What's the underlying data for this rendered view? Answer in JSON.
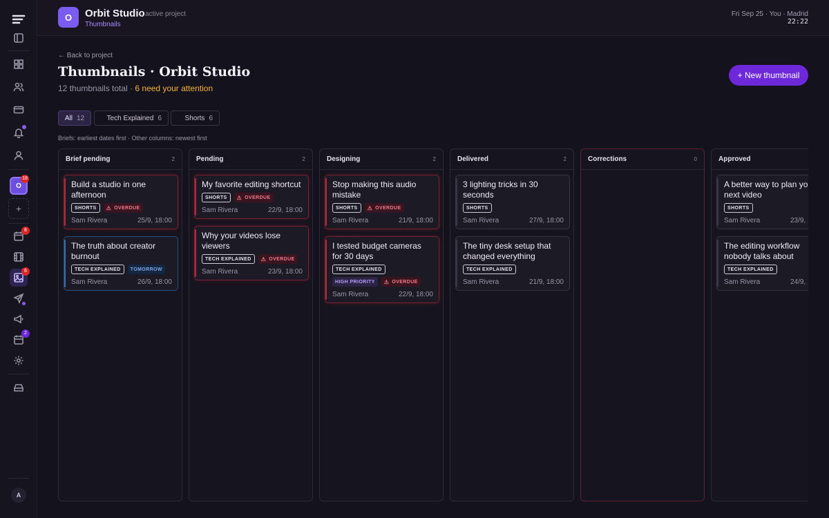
{
  "topbar": {
    "project_initial": "O",
    "project_name": "Orbit Studio",
    "project_status": "· active project",
    "breadcrumb": "Thumbnails",
    "datetime": "Fri Sep 25 · You · Madrid",
    "time": "22:22"
  },
  "sidebar": {
    "project_initial": "O",
    "project_badge": "18",
    "calendar_badge": "8",
    "thumbnails_badge": "6",
    "inbox_badge": "2",
    "avatar": "A"
  },
  "header": {
    "back": "← Back to project",
    "title": "Thumbnails · Orbit Studio",
    "total": "12 thumbnails total · ",
    "attention": "6 need your attention",
    "new_button": "+ New thumbnail"
  },
  "filters": [
    {
      "label": "All",
      "count": "12"
    },
    {
      "label": "Tech Explained",
      "count": "6"
    },
    {
      "label": "Shorts",
      "count": "6"
    }
  ],
  "sort_note": "Briefs: earliest dates first · Other columns: newest first",
  "columns": [
    {
      "name": "Brief pending",
      "count": "2",
      "cards": [
        {
          "title": "Build a studio in one afternoon",
          "tag": "SHORTS",
          "flag": "OVERDUE",
          "owner": "Sam Rivera",
          "date": "25/9, 18:00"
        },
        {
          "title": "The truth about creator burnout",
          "tag": "TECH EXPLAINED",
          "flag": "TOMORROW",
          "owner": "Sam Rivera",
          "date": "26/9, 18:00"
        }
      ]
    },
    {
      "name": "Pending",
      "count": "2",
      "cards": [
        {
          "title": "My favorite editing shortcut",
          "tag": "SHORTS",
          "flag": "OVERDUE",
          "owner": "Sam Rivera",
          "date": "22/9, 18:00"
        },
        {
          "title": "Why your videos lose viewers",
          "tag": "TECH EXPLAINED",
          "flag": "OVERDUE",
          "owner": "Sam Rivera",
          "date": "23/9, 18:00"
        }
      ]
    },
    {
      "name": "Designing",
      "count": "2",
      "cards": [
        {
          "title": "Stop making this audio mistake",
          "tag": "SHORTS",
          "flag": "OVERDUE",
          "owner": "Sam Rivera",
          "date": "21/9, 18:00"
        },
        {
          "title": "I tested budget cameras for 30 days",
          "tag": "TECH EXPLAINED",
          "priority": "HIGH PRIORITY",
          "flag": "OVERDUE",
          "owner": "Sam Rivera",
          "date": "22/9, 18:00"
        }
      ]
    },
    {
      "name": "Delivered",
      "count": "2",
      "cards": [
        {
          "title": "3 lighting tricks in 30 seconds",
          "tag": "SHORTS",
          "owner": "Sam Rivera",
          "date": "27/9, 18:00"
        },
        {
          "title": "The tiny desk setup that changed everything",
          "tag": "TECH EXPLAINED",
          "owner": "Sam Rivera",
          "date": "21/9, 18:00"
        }
      ]
    },
    {
      "name": "Corrections",
      "count": "0",
      "cards": []
    },
    {
      "name": "Approved",
      "count": "2",
      "cards": [
        {
          "title": "A better way to plan your next video",
          "tag": "SHORTS",
          "owner": "Sam Rivera",
          "date": "23/9, 18:00"
        },
        {
          "title": "The editing workflow nobody talks about",
          "tag": "TECH EXPLAINED",
          "owner": "Sam Rivera",
          "date": "24/9, 18:00"
        }
      ]
    }
  ]
}
